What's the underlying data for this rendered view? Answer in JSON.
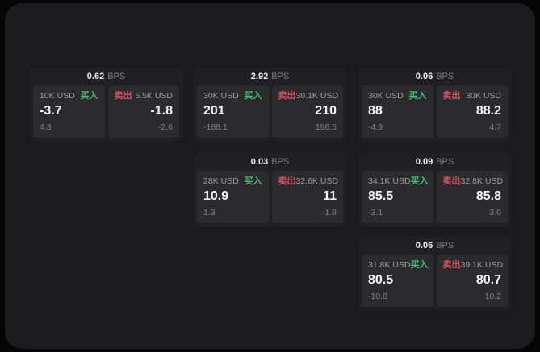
{
  "side_labels": {
    "buy": "买入",
    "sell": "卖出"
  },
  "colors": {
    "buy_green": "#46b97c",
    "sell_red": "#d65064",
    "panel_bg": "#1b1b1d",
    "card_bg": "#202022",
    "tile_bg": "#2b2b2d"
  },
  "cards": [
    {
      "bps": "0.62",
      "bps_label": "BPS",
      "buy": {
        "amount": "10K USD",
        "side": "买入",
        "value": "-3.7",
        "sub": "4.3"
      },
      "sell": {
        "amount": "5.5K USD",
        "side": "卖出",
        "value": "-1.8",
        "sub": "-2.6"
      }
    },
    {
      "bps": "2.92",
      "bps_label": "BPS",
      "buy": {
        "amount": "30K USD",
        "side": "买入",
        "value": "201",
        "sub": "-188.1"
      },
      "sell": {
        "amount": "30.1K USD",
        "side": "卖出",
        "value": "210",
        "sub": "196.5"
      }
    },
    {
      "bps": "0.06",
      "bps_label": "BPS",
      "buy": {
        "amount": "30K USD",
        "side": "买入",
        "value": "88",
        "sub": "-4.9"
      },
      "sell": {
        "amount": "30K USD",
        "side": "卖出",
        "value": "88.2",
        "sub": "4.7"
      }
    },
    {
      "bps": "0.03",
      "bps_label": "BPS",
      "buy": {
        "amount": "28K USD",
        "side": "买入",
        "value": "10.9",
        "sub": "1.3"
      },
      "sell": {
        "amount": "32.6K USD",
        "side": "卖出",
        "value": "11",
        "sub": "-1.8"
      }
    },
    {
      "bps": "0.09",
      "bps_label": "BPS",
      "buy": {
        "amount": "34.1K USD",
        "side": "买入",
        "value": "85.5",
        "sub": "-3.1"
      },
      "sell": {
        "amount": "32.8K USD",
        "side": "卖出",
        "value": "85.8",
        "sub": "3.0"
      }
    },
    {
      "bps": "0.06",
      "bps_label": "BPS",
      "buy": {
        "amount": "31.8K USD",
        "side": "买入",
        "value": "80.5",
        "sub": "-10.8"
      },
      "sell": {
        "amount": "39.1K USD",
        "side": "卖出",
        "value": "80.7",
        "sub": "10.2"
      }
    }
  ]
}
